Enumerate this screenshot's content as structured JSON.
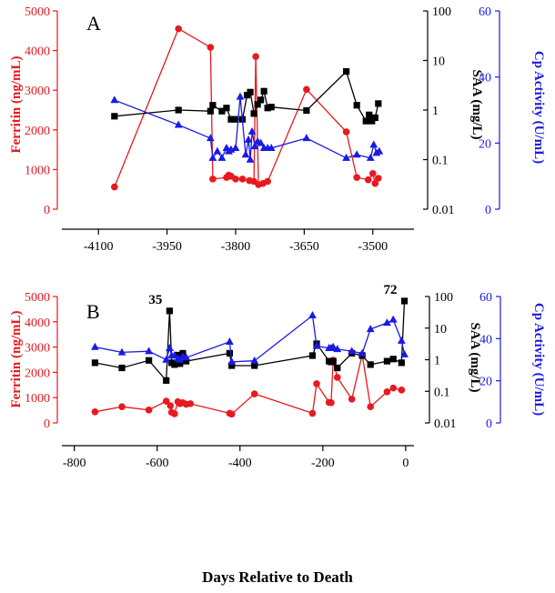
{
  "colors": {
    "ferritin": "#e8191f",
    "saa": "#000000",
    "cp": "#1a1ae6"
  },
  "shared_xlabel": "Days Relative to Death",
  "chart_data": [
    {
      "type": "line",
      "panel_label": "A",
      "xlim": [
        -4180,
        -3410
      ],
      "x_ticks": [
        -4100,
        -3950,
        -3800,
        -3650,
        -3500
      ],
      "x_tick_labels": [
        "-4100",
        "-3950",
        "-3800",
        "-3650",
        "-3500"
      ],
      "left_axis": {
        "label": "Ferritin (ng/mL)",
        "ylim": [
          0,
          5000
        ],
        "ticks": [
          0,
          1000,
          2000,
          3000,
          4000,
          5000
        ],
        "tick_labels": [
          "0",
          "1000",
          "2000",
          "3000",
          "4000",
          "5000"
        ]
      },
      "right_axis_1": {
        "label": "SAA (mg/L)",
        "scale": "log",
        "ylim": [
          0.01,
          100
        ],
        "ticks": [
          0.01,
          0.1,
          1,
          10,
          100
        ],
        "tick_labels": [
          "0.01",
          "0.1",
          "1",
          "10",
          "100"
        ]
      },
      "right_axis_2": {
        "label": "Cp Activity (U/mL)",
        "ylim": [
          0,
          60
        ],
        "ticks": [
          0,
          20,
          40,
          60
        ],
        "tick_labels": [
          "0",
          "20",
          "40",
          "60"
        ]
      },
      "series": [
        {
          "name": "Ferritin",
          "axis": "left",
          "marker": "circle",
          "x": [
            -4065,
            -3925,
            -3855,
            -3850,
            -3820,
            -3815,
            -3810,
            -3800,
            -3785,
            -3770,
            -3760,
            -3756,
            -3750,
            -3740,
            -3730,
            -3645,
            -3558,
            -3535,
            -3510,
            -3500,
            -3495,
            -3488
          ],
          "y": [
            560,
            4550,
            4080,
            760,
            800,
            860,
            830,
            760,
            760,
            720,
            700,
            3850,
            620,
            650,
            700,
            3020,
            1950,
            800,
            740,
            900,
            650,
            780
          ]
        },
        {
          "name": "SAA",
          "axis": "right1",
          "marker": "square",
          "x": [
            -4065,
            -3925,
            -3855,
            -3850,
            -3830,
            -3820,
            -3810,
            -3800,
            -3785,
            -3775,
            -3768,
            -3760,
            -3752,
            -3745,
            -3738,
            -3730,
            -3722,
            -3645,
            -3558,
            -3535,
            -3515,
            -3508,
            -3502,
            -3495,
            -3488
          ],
          "y": [
            0.75,
            1.0,
            0.95,
            1.25,
            0.95,
            1.1,
            0.65,
            0.65,
            0.65,
            2.0,
            2.3,
            0.85,
            1.3,
            1.6,
            2.4,
            1.1,
            1.15,
            0.98,
            6.0,
            1.25,
            0.6,
            0.8,
            0.6,
            0.7,
            1.35
          ]
        },
        {
          "name": "Cp Activity",
          "axis": "right2",
          "marker": "triangle",
          "x": [
            -4065,
            -3925,
            -3855,
            -3850,
            -3840,
            -3830,
            -3820,
            -3815,
            -3810,
            -3800,
            -3790,
            -3778,
            -3772,
            -3768,
            -3764,
            -3758,
            -3752,
            -3745,
            -3738,
            -3730,
            -3722,
            -3645,
            -3558,
            -3535,
            -3505,
            -3498,
            -3492,
            -3486
          ],
          "y": [
            33,
            25.5,
            21.5,
            15.5,
            17.5,
            15.5,
            18.5,
            17.5,
            18,
            18.5,
            34,
            16.5,
            21,
            15,
            23.5,
            19,
            20.5,
            20,
            18.5,
            18.5,
            18.5,
            21.5,
            15.5,
            16.5,
            15.5,
            19.5,
            17,
            17.5
          ]
        }
      ]
    },
    {
      "type": "line",
      "panel_label": "B",
      "xlim": [
        -830,
        20
      ],
      "x_ticks": [
        -800,
        -600,
        -400,
        -200,
        0
      ],
      "x_tick_labels": [
        "-800",
        "-600",
        "-400",
        "-200",
        "0"
      ],
      "left_axis": {
        "label": "Ferritin (ng/mL)",
        "ylim": [
          0,
          5000
        ],
        "ticks": [
          0,
          1000,
          2000,
          3000,
          4000,
          5000
        ],
        "tick_labels": [
          "0",
          "1000",
          "2000",
          "3000",
          "4000",
          "5000"
        ]
      },
      "right_axis_1": {
        "label": "SAA (mg/L)",
        "scale": "log",
        "ylim": [
          0.01,
          100
        ],
        "ticks": [
          0.01,
          0.1,
          1,
          10,
          100
        ],
        "tick_labels": [
          "0.01",
          "0.1",
          "1",
          "10",
          "100"
        ]
      },
      "right_axis_2": {
        "label": "Cp Activity (U/mL)",
        "ylim": [
          0,
          60
        ],
        "ticks": [
          0,
          20,
          40,
          60
        ],
        "tick_labels": [
          "0",
          "20",
          "40",
          "60"
        ]
      },
      "annotations": [
        {
          "text": "35",
          "x": -570,
          "y_saa": 35
        },
        {
          "text": "72",
          "x": -3,
          "y_saa": 72
        }
      ],
      "series": [
        {
          "name": "Ferritin",
          "axis": "left",
          "marker": "circle",
          "x": [
            -750,
            -685,
            -620,
            -578,
            -568,
            -565,
            -558,
            -550,
            -545,
            -538,
            -530,
            -520,
            -425,
            -420,
            -365,
            -225,
            -215,
            -185,
            -180,
            -175,
            -165,
            -130,
            -105,
            -85,
            -45,
            -30,
            -10
          ],
          "y": [
            440,
            640,
            510,
            860,
            680,
            420,
            360,
            840,
            760,
            800,
            740,
            760,
            380,
            350,
            1150,
            380,
            1550,
            810,
            800,
            2480,
            1800,
            940,
            2700,
            640,
            1230,
            1380,
            1300
          ]
        },
        {
          "name": "SAA",
          "axis": "right1",
          "marker": "square",
          "x": [
            -750,
            -685,
            -620,
            -578,
            -570,
            -565,
            -558,
            -550,
            -545,
            -538,
            -530,
            -425,
            -420,
            -365,
            -225,
            -215,
            -185,
            -180,
            -175,
            -165,
            -130,
            -105,
            -85,
            -45,
            -30,
            -10,
            -3
          ],
          "y": [
            0.8,
            0.55,
            0.95,
            0.22,
            35,
            0.8,
            0.7,
            1.4,
            0.75,
            1.6,
            0.9,
            1.6,
            0.65,
            0.65,
            1.35,
            3.2,
            0.9,
            0.85,
            0.9,
            0.55,
            1.6,
            1.35,
            0.7,
            0.9,
            1.05,
            0.8,
            72
          ]
        },
        {
          "name": "Cp Activity",
          "axis": "right2",
          "marker": "triangle",
          "x": [
            -750,
            -685,
            -620,
            -578,
            -570,
            -565,
            -558,
            -550,
            -545,
            -538,
            -530,
            -425,
            -420,
            -365,
            -225,
            -215,
            -185,
            -180,
            -175,
            -165,
            -130,
            -105,
            -85,
            -45,
            -30,
            -10,
            -3
          ],
          "y": [
            36,
            33.5,
            34,
            30,
            35.5,
            32,
            32,
            30.5,
            30,
            31.5,
            31,
            38.5,
            29,
            29.5,
            51,
            36.5,
            35.5,
            35.5,
            36,
            35,
            34,
            33,
            44.5,
            47.5,
            49,
            39,
            32.5
          ]
        }
      ]
    }
  ]
}
